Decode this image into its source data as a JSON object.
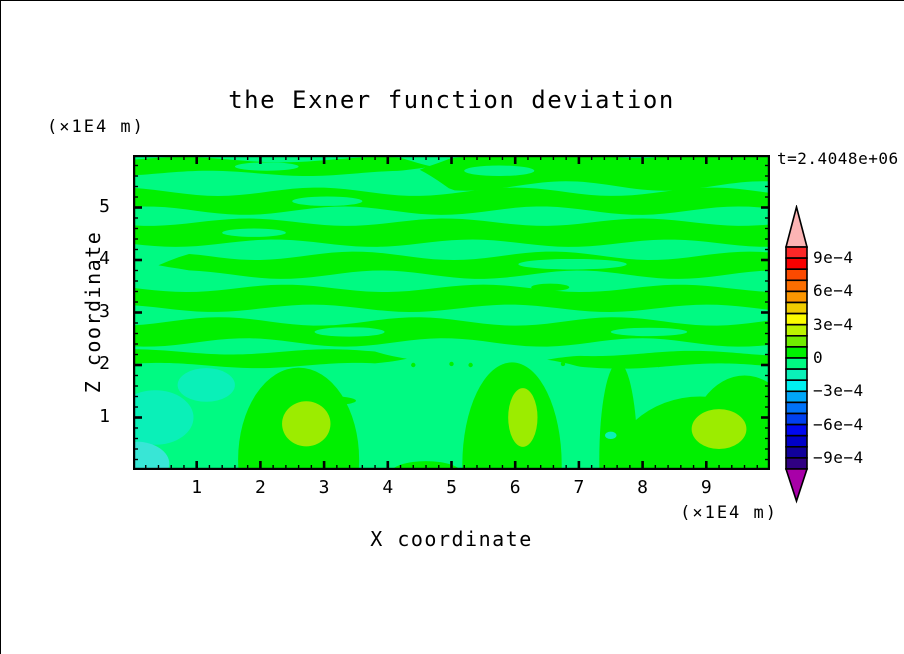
{
  "title": "the Exner function deviation",
  "annotations": {
    "time_label": "t=2.4048e+06",
    "y_axis_unit": "(×1E4 m)",
    "x_axis_unit": "(×1E4 m)"
  },
  "axes": {
    "x_label": "X coordinate",
    "y_label": "Z coordinate",
    "x_ticks": [
      1,
      2,
      3,
      4,
      5,
      6,
      7,
      8,
      9
    ],
    "y_ticks": [
      1,
      2,
      3,
      4,
      5
    ],
    "x_range": [
      0,
      10
    ],
    "y_range": [
      0,
      6
    ],
    "minor_tick_step": 0.2
  },
  "colorbar": {
    "labels": [
      "9e−4",
      "6e−4",
      "3e−4",
      "0",
      "−3e−4",
      "−6e−4",
      "−9e−4"
    ],
    "label_values": [
      0.0009,
      0.0006,
      0.0003,
      0,
      -0.0003,
      -0.0006,
      -0.0009
    ],
    "box_colors_top_to_bottom": [
      "#FC2828",
      "#F80000",
      "#FC4A00",
      "#FC6E00",
      "#FC9600",
      "#F0CC00",
      "#FCFC00",
      "#BCF400",
      "#70EC00",
      "#00F000",
      "#00FA82",
      "#0AF0B8",
      "#00F0F0",
      "#00A6F8",
      "#0072F8",
      "#0040F0",
      "#0008F0",
      "#0000C8",
      "#10009B",
      "#300082"
    ],
    "arrow_top_color": "#FCB4B4",
    "arrow_bottom_color": "#A800A8",
    "outline_color": "#000000"
  },
  "chart_data": {
    "type": "heatmap",
    "subtype": "filled-contour",
    "title": "the Exner function deviation",
    "xlabel": "X coordinate (×1E4 m)",
    "ylabel": "Z coordinate (×1E4 m)",
    "time_annotation": "t=2.4048e+06",
    "xlim": [
      0,
      10
    ],
    "ylim": [
      0,
      6
    ],
    "contour_interval": 0.0001,
    "colorbar_range": [
      -0.001,
      0.001
    ],
    "displayed_value_range": [
      -0.0003,
      0.0003
    ],
    "description": "Wavy horizontal bands of weakly positive (0..1e-4) deviation over a weakly negative (-1e-4..0) background in the upper region; convective columns of positive deviation near the surface with local maxima (1e-4..2e-4) at x≈2.7, 6.1 and 9.2, and negative patches (-2e-4..-3e-4) near the lower-left corner.",
    "colors": {
      "background_neg": "#00FA82",
      "pos_band": "#00F000",
      "peak_blob": "#9CEC00",
      "neg_patch": "#0AF0B8",
      "neg_corner": "#38E6D6"
    },
    "pos_wave_bands": [
      {
        "z": 5.78,
        "th": 0.26,
        "x0": 0,
        "x1": 4.7,
        "amp": 0.05,
        "ph": 0.0
      },
      {
        "z": 5.72,
        "th": 0.62,
        "x0": 4.5,
        "x1": 10,
        "amp": 0.09,
        "ph": 1.2
      },
      {
        "z": 5.12,
        "th": 0.36,
        "x0": 0,
        "x1": 10,
        "amp": 0.08,
        "ph": 2.0
      },
      {
        "z": 4.52,
        "th": 0.4,
        "x0": 0,
        "x1": 10,
        "amp": 0.07,
        "ph": 4.2
      },
      {
        "z": 3.9,
        "th": 0.36,
        "x0": 0.4,
        "x1": 10,
        "amp": 0.08,
        "ph": 0.8
      },
      {
        "z": 3.27,
        "th": 0.38,
        "x0": 0,
        "x1": 10,
        "amp": 0.07,
        "ph": 3.0
      },
      {
        "z": 2.63,
        "th": 0.4,
        "x0": 0,
        "x1": 10,
        "amp": 0.08,
        "ph": 5.1
      },
      {
        "z": 2.12,
        "th": 0.26,
        "x0": 0,
        "x1": 4.3,
        "amp": 0.05,
        "ph": 1.6
      },
      {
        "z": 2.1,
        "th": 0.24,
        "x0": 6.5,
        "x1": 10,
        "amp": 0.05,
        "ph": 2.6
      }
    ],
    "pos_columns": [
      {
        "cx": 2.6,
        "cy": 0.2,
        "rx": 0.95,
        "ry": 1.75
      },
      {
        "cx": 5.95,
        "cy": 0.1,
        "rx": 0.78,
        "ry": 1.95
      },
      {
        "cx": 8.9,
        "cy": -0.2,
        "rx": 1.45,
        "ry": 1.6
      },
      {
        "cx": 9.6,
        "cy": 0.3,
        "rx": 0.9,
        "ry": 1.5
      },
      {
        "cx": 7.62,
        "cy": 0.2,
        "rx": 0.3,
        "ry": 1.85
      },
      {
        "cx": 4.6,
        "cy": -0.05,
        "rx": 0.55,
        "ry": 0.22
      }
    ],
    "neg_lenses_in_bands": [
      {
        "cx": 2.1,
        "cy": 5.78,
        "rx": 0.5,
        "ry": 0.08
      },
      {
        "cx": 5.75,
        "cy": 5.7,
        "rx": 0.55,
        "ry": 0.1
      },
      {
        "cx": 3.05,
        "cy": 5.12,
        "rx": 0.55,
        "ry": 0.09
      },
      {
        "cx": 1.9,
        "cy": 4.52,
        "rx": 0.5,
        "ry": 0.08
      },
      {
        "cx": 6.9,
        "cy": 3.92,
        "rx": 0.85,
        "ry": 0.1
      },
      {
        "cx": 3.4,
        "cy": 2.63,
        "rx": 0.55,
        "ry": 0.09
      },
      {
        "cx": 8.1,
        "cy": 2.63,
        "rx": 0.6,
        "ry": 0.08
      }
    ],
    "pos_lenses": [
      {
        "cx": 6.55,
        "cy": 3.48,
        "rx": 0.3,
        "ry": 0.07
      },
      {
        "cx": 3.05,
        "cy": 1.32,
        "rx": 0.45,
        "ry": 0.09
      }
    ],
    "neg_patches": [
      {
        "cx": 0.35,
        "cy": 1.0,
        "rx": 0.6,
        "ry": 0.52
      },
      {
        "cx": 1.15,
        "cy": 1.62,
        "rx": 0.45,
        "ry": 0.32
      },
      {
        "cx": 7.5,
        "cy": 0.66,
        "rx": 0.09,
        "ry": 0.07
      }
    ],
    "neg_corner_patches": [
      {
        "cx": 0.05,
        "cy": 0.12,
        "rx": 0.52,
        "ry": 0.42
      }
    ],
    "peak_blobs": [
      {
        "cx": 2.72,
        "cy": 0.88,
        "rx": 0.38,
        "ry": 0.43
      },
      {
        "cx": 6.12,
        "cy": 1.0,
        "rx": 0.23,
        "ry": 0.56
      },
      {
        "cx": 9.2,
        "cy": 0.78,
        "rx": 0.43,
        "ry": 0.38
      }
    ],
    "speckles": [
      {
        "x": 4.4,
        "z": 2.0
      },
      {
        "x": 5.0,
        "z": 2.02
      },
      {
        "x": 5.3,
        "z": 2.0
      },
      {
        "x": 6.75,
        "z": 2.02
      },
      {
        "x": 6.95,
        "z": 2.06
      },
      {
        "x": 7.15,
        "z": 2.0
      },
      {
        "x": 8.0,
        "z": 2.04
      },
      {
        "x": 8.25,
        "z": 2.0
      }
    ]
  }
}
